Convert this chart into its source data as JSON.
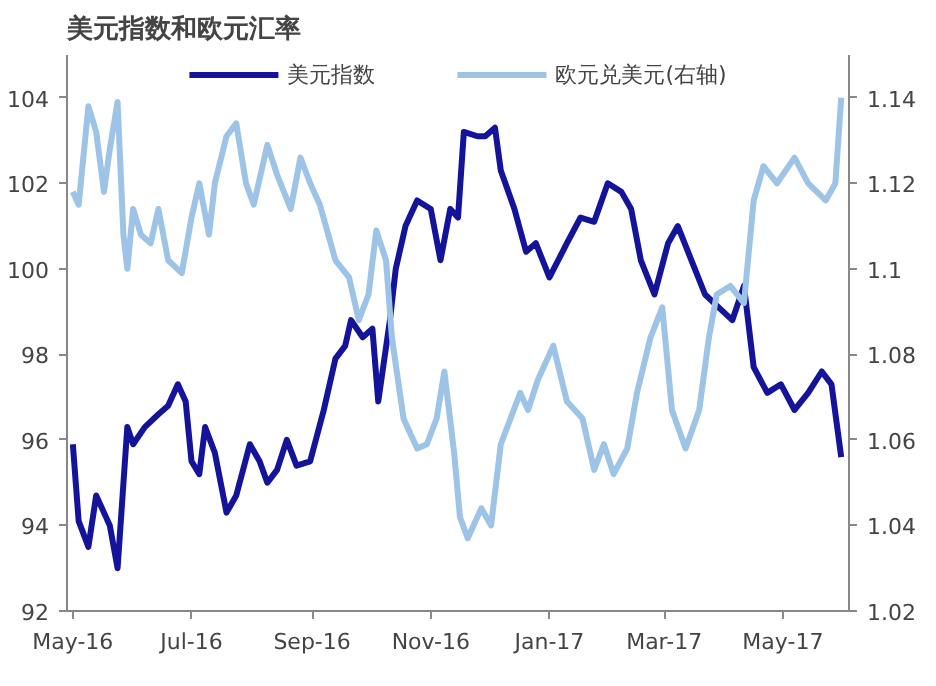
{
  "chart_data": {
    "type": "line",
    "title": "美元指数和欧元汇率",
    "legend": "top",
    "grid": false,
    "xlim": [
      "2016-04-28",
      "2017-06-04"
    ],
    "xticks": [
      {
        "value": "2016-05-01",
        "label": "May-16"
      },
      {
        "value": "2016-07-01",
        "label": "Jul-16"
      },
      {
        "value": "2016-09-01",
        "label": "Sep-16"
      },
      {
        "value": "2016-11-01",
        "label": "Nov-16"
      },
      {
        "value": "2017-01-01",
        "label": "Jan-17"
      },
      {
        "value": "2017-03-01",
        "label": "Mar-17"
      },
      {
        "value": "2017-05-01",
        "label": "May-17"
      }
    ],
    "ylim": [
      92,
      105
    ],
    "yticks": [
      92,
      94,
      96,
      98,
      100,
      102,
      104
    ],
    "y2lim": [
      1.02,
      1.15
    ],
    "y2ticks": [
      1.02,
      1.04,
      1.06,
      1.08,
      1.1,
      1.12,
      1.14
    ],
    "series": [
      {
        "name": "美元指数",
        "color": "#14149b",
        "x": [
          "2016-05-01",
          "2016-05-04",
          "2016-05-09",
          "2016-05-13",
          "2016-05-17",
          "2016-05-20",
          "2016-05-24",
          "2016-05-29",
          "2016-06-01",
          "2016-06-07",
          "2016-06-14",
          "2016-06-19",
          "2016-06-24",
          "2016-06-28",
          "2016-07-01",
          "2016-07-05",
          "2016-07-08",
          "2016-07-13",
          "2016-07-19",
          "2016-07-24",
          "2016-07-31",
          "2016-08-05",
          "2016-08-09",
          "2016-08-14",
          "2016-08-19",
          "2016-08-24",
          "2016-08-31",
          "2016-09-07",
          "2016-09-13",
          "2016-09-18",
          "2016-09-21",
          "2016-09-27",
          "2016-10-02",
          "2016-10-05",
          "2016-10-11",
          "2016-10-14",
          "2016-10-19",
          "2016-10-25",
          "2016-11-01",
          "2016-11-06",
          "2016-11-11",
          "2016-11-15",
          "2016-11-18",
          "2016-11-25",
          "2016-11-29",
          "2016-12-04",
          "2016-12-07",
          "2016-12-14",
          "2016-12-20",
          "2016-12-25",
          "2017-01-01",
          "2017-01-10",
          "2017-01-17",
          "2017-01-24",
          "2017-01-31",
          "2017-02-07",
          "2017-02-12",
          "2017-02-17",
          "2017-02-24",
          "2017-03-03",
          "2017-03-08",
          "2017-03-15",
          "2017-03-22",
          "2017-03-29",
          "2017-04-05",
          "2017-04-11",
          "2017-04-16",
          "2017-04-23",
          "2017-04-30",
          "2017-05-07",
          "2017-05-14",
          "2017-05-21",
          "2017-05-26",
          "2017-05-31"
        ],
        "values": [
          95.9,
          94.1,
          93.5,
          94.7,
          94.3,
          94.0,
          93.0,
          96.3,
          95.9,
          96.3,
          96.6,
          96.8,
          97.3,
          96.9,
          95.5,
          95.2,
          96.3,
          95.7,
          94.3,
          94.7,
          95.9,
          95.5,
          95.0,
          95.3,
          96.0,
          95.4,
          95.5,
          96.7,
          97.9,
          98.2,
          98.8,
          98.4,
          98.6,
          96.9,
          98.8,
          100.0,
          101.0,
          101.6,
          101.4,
          100.2,
          101.4,
          101.2,
          103.2,
          103.1,
          103.1,
          103.3,
          102.3,
          101.4,
          100.4,
          100.6,
          99.8,
          100.6,
          101.2,
          101.1,
          102.0,
          101.8,
          101.4,
          100.2,
          99.4,
          100.6,
          101.0,
          100.2,
          99.4,
          99.1,
          98.8,
          99.6,
          97.7,
          97.1,
          97.3,
          96.7,
          97.1,
          97.6,
          97.3,
          95.6
        ]
      },
      {
        "name": "欧元兑美元(右轴)",
        "color": "#9dc3e6",
        "axis": "y2",
        "x": [
          "2016-05-01",
          "2016-05-04",
          "2016-05-09",
          "2016-05-13",
          "2016-05-17",
          "2016-05-20",
          "2016-05-24",
          "2016-05-27",
          "2016-05-29",
          "2016-06-01",
          "2016-06-05",
          "2016-06-10",
          "2016-06-14",
          "2016-06-19",
          "2016-06-26",
          "2016-07-01",
          "2016-07-05",
          "2016-07-10",
          "2016-07-13",
          "2016-07-19",
          "2016-07-24",
          "2016-07-29",
          "2016-08-02",
          "2016-08-09",
          "2016-08-14",
          "2016-08-21",
          "2016-08-26",
          "2016-08-31",
          "2016-09-05",
          "2016-09-13",
          "2016-09-20",
          "2016-09-25",
          "2016-09-30",
          "2016-10-04",
          "2016-10-09",
          "2016-10-12",
          "2016-10-18",
          "2016-10-25",
          "2016-10-30",
          "2016-11-04",
          "2016-11-08",
          "2016-11-13",
          "2016-11-16",
          "2016-11-20",
          "2016-11-27",
          "2016-12-02",
          "2016-12-07",
          "2016-12-12",
          "2016-12-17",
          "2016-12-21",
          "2016-12-26",
          "2017-01-03",
          "2017-01-10",
          "2017-01-18",
          "2017-01-24",
          "2017-01-29",
          "2017-02-03",
          "2017-02-10",
          "2017-02-15",
          "2017-02-22",
          "2017-02-28",
          "2017-03-05",
          "2017-03-12",
          "2017-03-19",
          "2017-03-24",
          "2017-03-28",
          "2017-04-04",
          "2017-04-11",
          "2017-04-16",
          "2017-04-21",
          "2017-04-28",
          "2017-05-07",
          "2017-05-14",
          "2017-05-23",
          "2017-05-28",
          "2017-05-31"
        ],
        "values": [
          1.118,
          1.115,
          1.138,
          1.132,
          1.118,
          1.128,
          1.139,
          1.108,
          1.1,
          1.114,
          1.108,
          1.106,
          1.114,
          1.102,
          1.099,
          1.112,
          1.12,
          1.108,
          1.12,
          1.131,
          1.134,
          1.12,
          1.115,
          1.129,
          1.122,
          1.114,
          1.126,
          1.12,
          1.115,
          1.102,
          1.098,
          1.088,
          1.094,
          1.109,
          1.102,
          1.084,
          1.065,
          1.058,
          1.059,
          1.065,
          1.076,
          1.057,
          1.042,
          1.037,
          1.044,
          1.04,
          1.059,
          1.065,
          1.071,
          1.067,
          1.074,
          1.082,
          1.069,
          1.065,
          1.053,
          1.059,
          1.052,
          1.058,
          1.071,
          1.084,
          1.091,
          1.067,
          1.058,
          1.067,
          1.084,
          1.094,
          1.096,
          1.092,
          1.116,
          1.124,
          1.12,
          1.126,
          1.12,
          1.116,
          1.12,
          1.14
        ]
      }
    ]
  }
}
